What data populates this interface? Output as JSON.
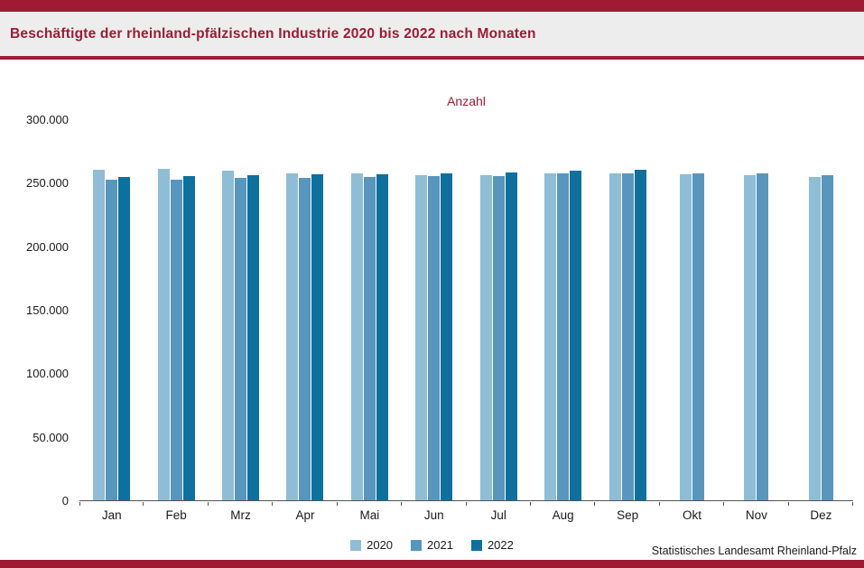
{
  "header": {
    "title": "Beschäftigte der rheinland-pfälzischen Industrie 2020 bis 2022 nach Monaten"
  },
  "chart_data": {
    "type": "bar",
    "title": "Anzahl",
    "categories": [
      "Jan",
      "Feb",
      "Mrz",
      "Apr",
      "Mai",
      "Jun",
      "Jul",
      "Aug",
      "Sep",
      "Okt",
      "Nov",
      "Dez"
    ],
    "series": [
      {
        "name": "2020",
        "color": "#8fbdd5",
        "values": [
          260500,
          261000,
          259500,
          257500,
          257000,
          256000,
          256000,
          257000,
          257000,
          256500,
          256000,
          254500
        ]
      },
      {
        "name": "2021",
        "color": "#5896bd",
        "values": [
          252500,
          252500,
          254000,
          253500,
          254500,
          255500,
          255500,
          257000,
          257500,
          257000,
          257000,
          256000
        ]
      },
      {
        "name": "2022",
        "color": "#0f709d",
        "values": [
          254500,
          255000,
          256000,
          256500,
          256500,
          257500,
          258000,
          259500,
          260500,
          null,
          null,
          null
        ]
      }
    ],
    "ylim": [
      0,
      300000
    ],
    "ytick_step": 50000,
    "ytick_labels": [
      "0",
      "50.000",
      "100.000",
      "150.000",
      "200.000",
      "250.000",
      "300.000"
    ],
    "grid": false,
    "legend_position": "bottom"
  },
  "footer": {
    "source": "Statistisches Landesamt Rheinland-Pfalz"
  },
  "colors": {
    "accent": "#9e1b33",
    "band_background": "#ededed",
    "axis": "#545454"
  }
}
